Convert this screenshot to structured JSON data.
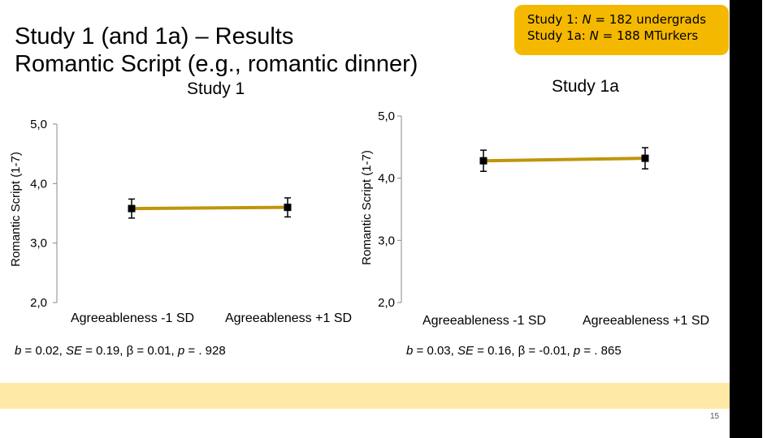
{
  "slide": {
    "title_line1": "Study 1 (and 1a) – Results",
    "title_line2": "Romantic Script (e.g., romantic dinner)",
    "page_number": "15"
  },
  "badge": {
    "line1_prefix": "Study 1: ",
    "line1_n": "N",
    "line1_suffix": " = 182 undergrads",
    "line2_prefix": "Study 1a: ",
    "line2_n": "N",
    "line2_suffix": " = 188 MTurkers"
  },
  "colors": {
    "accent": "#F5B800",
    "line": "#C0950A",
    "band": "#FFE9A6"
  },
  "chart_data": [
    {
      "type": "line",
      "title": "Study 1",
      "categories": [
        "Agreeableness -1 SD",
        "Agreeableness +1 SD"
      ],
      "values": [
        3.58,
        3.6
      ],
      "error": [
        0.16,
        0.16
      ],
      "ylabel": "Romantic Script (1-7)",
      "yticks": [
        "5,0",
        "4,0",
        "3,0",
        "2,0"
      ],
      "ylim": [
        2,
        5
      ],
      "stats": {
        "b_label": "b",
        "b_val": " = 0.02, ",
        "se_label": "SE",
        "se_val": " = 0.19, β = 0.01, ",
        "p_label": "p",
        "p_val": " = . 928"
      }
    },
    {
      "type": "line",
      "title": "Study 1a",
      "categories": [
        "Agreeableness  -1 SD",
        "Agreeableness  +1 SD"
      ],
      "values": [
        4.28,
        4.32
      ],
      "error": [
        0.17,
        0.17
      ],
      "ylabel": "Romantic Script (1-7)",
      "yticks": [
        "5,0",
        "4,0",
        "3,0",
        "2,0"
      ],
      "ylim": [
        2,
        5
      ],
      "stats": {
        "b_label": "b",
        "b_val": " = 0.03, ",
        "se_label": "SE",
        "se_val": " = 0.16, β = -0.01, ",
        "p_label": "p",
        "p_val": " = . 865"
      }
    }
  ]
}
